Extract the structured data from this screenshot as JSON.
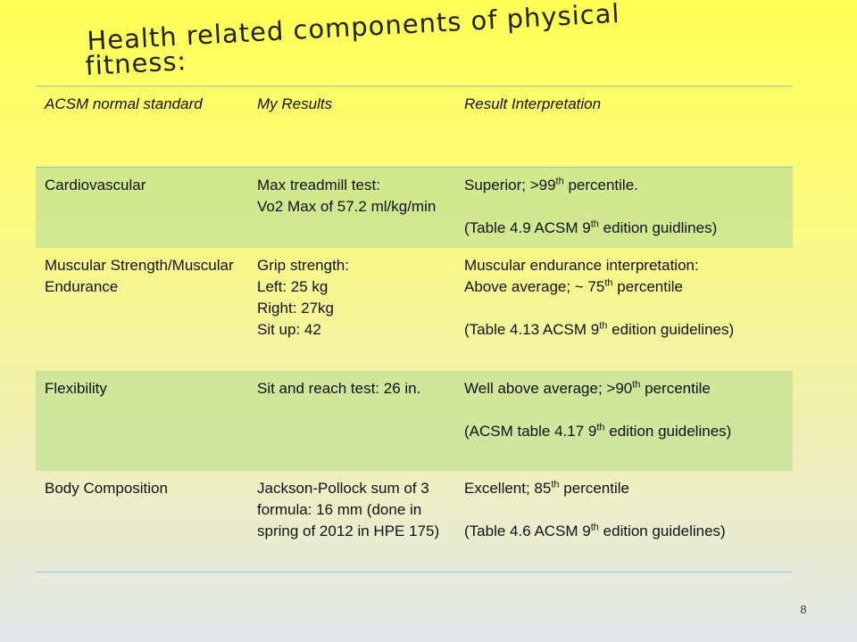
{
  "slide": {
    "title_line1": "Health related components of physical",
    "title_line2": "fitness:",
    "page_number": "8"
  },
  "table": {
    "headers": [
      "ACSM normal standard",
      "My Results",
      "Result Interpretation"
    ],
    "rows": [
      {
        "component": "Cardiovascular",
        "results": [
          "Max treadmill test:",
          "Vo2 Max of 57.2 ml/kg/min"
        ],
        "interp1_prefix": "Superior; >99",
        "interp1_sup": "th",
        "interp1_suffix": " percentile.",
        "interp2_prefix": "(Table 4.9 ACSM 9",
        "interp2_sup": "th",
        "interp2_suffix": " edition guidlines)"
      },
      {
        "component": "Muscular Strength/Muscular Endurance",
        "results": [
          "Grip strength:",
          "Left: 25 kg",
          "Right: 27kg",
          "Sit up: 42"
        ],
        "interp0": "Muscular endurance interpretation:",
        "interp1_prefix": "Above average; ~ 75",
        "interp1_sup": "th",
        "interp1_suffix": " percentile",
        "interp2_prefix": "(Table 4.13 ACSM 9",
        "interp2_sup": "th",
        "interp2_suffix": " edition guidelines)"
      },
      {
        "component": "Flexibility",
        "results": [
          "Sit and reach test: 26 in."
        ],
        "interp1_prefix": "Well above average; >90",
        "interp1_sup": "th",
        "interp1_suffix": " percentile",
        "interp2_prefix": "(ACSM table 4.17 9",
        "interp2_sup": "th",
        "interp2_suffix": " edition guidelines)"
      },
      {
        "component": "Body Composition",
        "results": [
          "Jackson-Pollock sum of 3 formula: 16 mm (done in spring of 2012 in HPE 175)"
        ],
        "interp1_prefix": "Excellent; 85",
        "interp1_sup": "th",
        "interp1_suffix": " percentile",
        "interp2_prefix": "(Table 4.6 ACSM 9",
        "interp2_sup": "th",
        "interp2_suffix": " edition guidelines)"
      }
    ]
  }
}
